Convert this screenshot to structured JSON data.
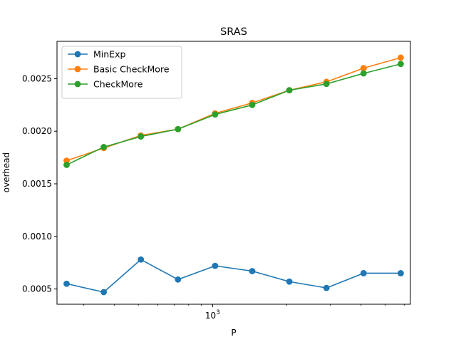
{
  "chart_data": {
    "type": "line",
    "title": "SRAS",
    "xlabel": "P",
    "ylabel": "overhead",
    "xscale": "log",
    "x": [
      256,
      362,
      512,
      724,
      1024,
      1448,
      2048,
      2896,
      4096,
      5793
    ],
    "xlim": [
      234,
      6340
    ],
    "ylim": [
      0.000355,
      0.002855
    ],
    "y_ticks": [
      0.0005,
      0.001,
      0.0015,
      0.002,
      0.0025
    ],
    "y_tick_labels": [
      "0.0005",
      "0.0010",
      "0.0015",
      "0.0020",
      "0.0025"
    ],
    "x_ticks": [
      1000
    ],
    "x_tick_labels": [
      {
        "base": "10",
        "exp": "3"
      }
    ],
    "grid": false,
    "legend": "upper-left",
    "series": [
      {
        "name": "MinExp",
        "color": "#1f77b4",
        "values": [
          0.00055,
          0.00047,
          0.00078,
          0.00059,
          0.00072,
          0.00067,
          0.00057,
          0.00051,
          0.00065,
          0.00065
        ]
      },
      {
        "name": "Basic CheckMore",
        "color": "#ff7f0e",
        "values": [
          0.00172,
          0.00184,
          0.00196,
          0.00202,
          0.00217,
          0.00227,
          0.00239,
          0.00247,
          0.0026,
          0.0027
        ]
      },
      {
        "name": "CheckMore",
        "color": "#2ca02c",
        "values": [
          0.00168,
          0.00185,
          0.00195,
          0.00202,
          0.00216,
          0.00225,
          0.00239,
          0.00245,
          0.00255,
          0.00264
        ]
      }
    ]
  }
}
